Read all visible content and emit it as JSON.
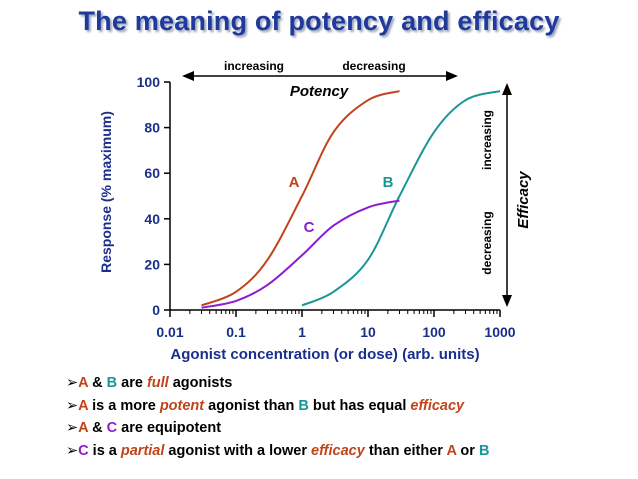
{
  "title": "The meaning of potency and efficacy",
  "colors": {
    "title": "#1f3a9b",
    "A": "#c0441b",
    "B": "#1a9696",
    "C": "#8c1bd1",
    "emphasis": "#c0441b",
    "axis": "#1a2f8a"
  },
  "chart_data": {
    "type": "line",
    "title": "",
    "xlabel": "Agonist concentration (or dose) (arb. units)",
    "ylabel": "Response (% maximum)",
    "xscale": "log",
    "xlim": [
      0.01,
      1000
    ],
    "ylim": [
      0,
      100
    ],
    "xticks": [
      "0.01",
      "0.1",
      "1",
      "10",
      "100",
      "1000"
    ],
    "yticks": [
      "0",
      "20",
      "40",
      "60",
      "80",
      "100"
    ],
    "grid": false,
    "series": [
      {
        "name": "A",
        "x": [
          0.03,
          0.1,
          0.3,
          1,
          3,
          10,
          30
        ],
        "y": [
          2,
          8,
          22,
          50,
          78,
          92,
          96
        ]
      },
      {
        "name": "B",
        "x": [
          1,
          3,
          10,
          30,
          100,
          300,
          1000
        ],
        "y": [
          2,
          8,
          22,
          50,
          78,
          92,
          96
        ]
      },
      {
        "name": "C",
        "x": [
          0.03,
          0.1,
          0.3,
          1,
          3,
          10,
          30
        ],
        "y": [
          1,
          4,
          11,
          24,
          37,
          45,
          48
        ]
      }
    ],
    "annotations": {
      "potency_label": "Potency",
      "potency_left": "increasing",
      "potency_right": "decreasing",
      "efficacy_label": "Efficacy",
      "efficacy_top": "increasing",
      "efficacy_bottom": "decreasing"
    }
  },
  "bullets": [
    [
      {
        "t": "➢",
        "c": "black"
      },
      {
        "t": "A",
        "c": "A"
      },
      {
        "t": " & ",
        "c": "black"
      },
      {
        "t": "B",
        "c": "B"
      },
      {
        "t": " are ",
        "c": "black"
      },
      {
        "t": "full",
        "c": "emphasis",
        "i": true
      },
      {
        "t": " agonists",
        "c": "black"
      }
    ],
    [
      {
        "t": "➢",
        "c": "black"
      },
      {
        "t": "A",
        "c": "A"
      },
      {
        "t": " is a more ",
        "c": "black"
      },
      {
        "t": "potent",
        "c": "emphasis",
        "i": true
      },
      {
        "t": " agonist than ",
        "c": "black"
      },
      {
        "t": "B",
        "c": "B"
      },
      {
        "t": " but has equal ",
        "c": "black"
      },
      {
        "t": "efficacy",
        "c": "emphasis",
        "i": true
      }
    ],
    [
      {
        "t": "➢",
        "c": "black"
      },
      {
        "t": "A",
        "c": "A"
      },
      {
        "t": " & ",
        "c": "black"
      },
      {
        "t": "C",
        "c": "C"
      },
      {
        "t": " are equipotent",
        "c": "black"
      }
    ],
    [
      {
        "t": "➢",
        "c": "black"
      },
      {
        "t": "C",
        "c": "C"
      },
      {
        "t": " is a ",
        "c": "black"
      },
      {
        "t": "partial",
        "c": "emphasis",
        "i": true
      },
      {
        "t": " agonist with a lower ",
        "c": "black"
      },
      {
        "t": "efficacy",
        "c": "emphasis",
        "i": true
      },
      {
        "t": " than either ",
        "c": "black"
      },
      {
        "t": "A",
        "c": "A"
      },
      {
        "t": " or ",
        "c": "black"
      },
      {
        "t": "B",
        "c": "B"
      }
    ]
  ]
}
